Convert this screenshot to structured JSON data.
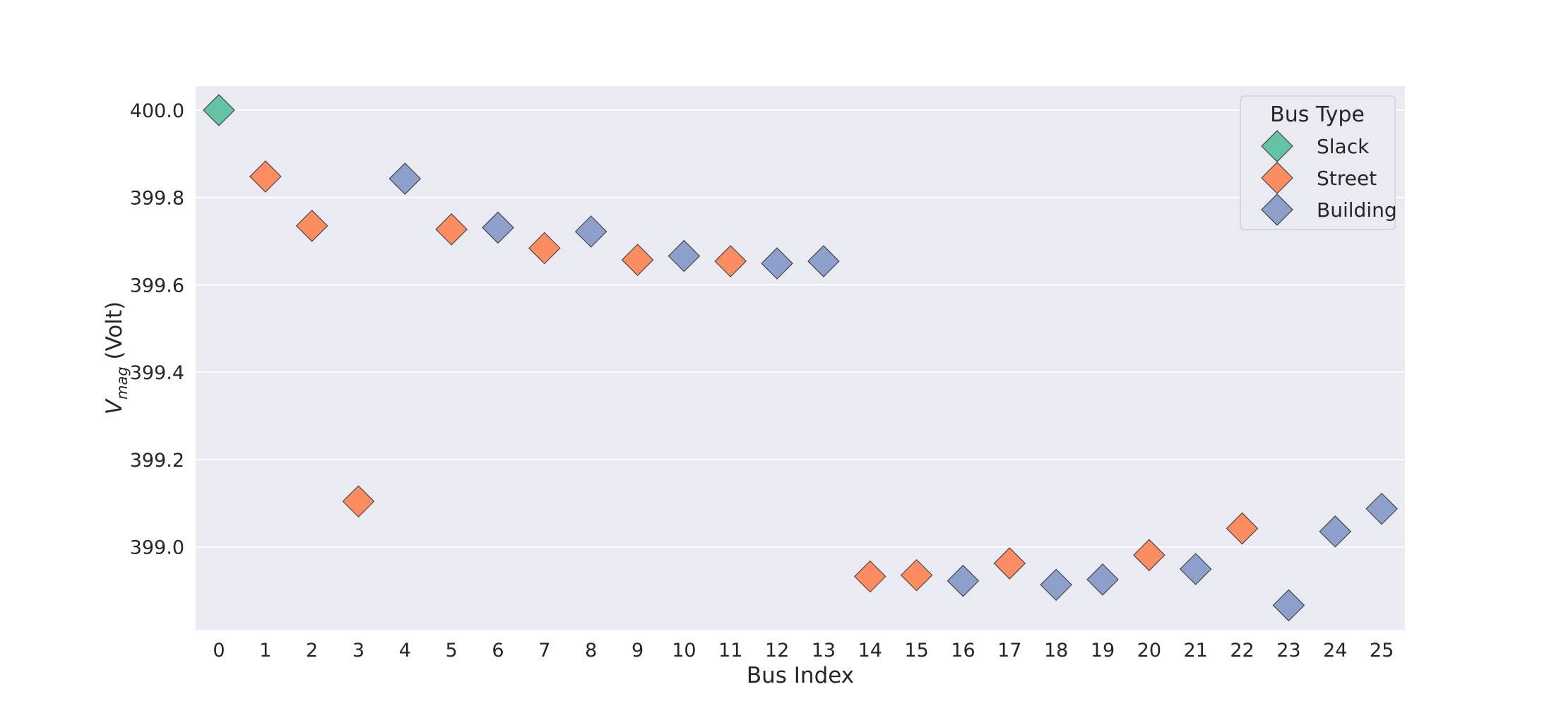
{
  "chart_data": {
    "type": "scatter",
    "title": "",
    "xlabel": "Bus Index",
    "ylabel_main": "V",
    "ylabel_sub": "mag",
    "ylabel_unit": " (Volt)",
    "xlim": [
      -0.5,
      25.5
    ],
    "ylim": [
      398.81,
      400.055
    ],
    "xticks": [
      "0",
      "1",
      "2",
      "3",
      "4",
      "5",
      "6",
      "7",
      "8",
      "9",
      "10",
      "11",
      "12",
      "13",
      "14",
      "15",
      "16",
      "17",
      "18",
      "19",
      "20",
      "21",
      "22",
      "23",
      "24",
      "25"
    ],
    "yticks": [
      "399.0",
      "399.2",
      "399.4",
      "399.6",
      "399.8",
      "400.0"
    ],
    "grid": true,
    "legend": {
      "title": "Bus Type",
      "placement": "top-right",
      "entries": [
        {
          "label": "Slack",
          "color": "#66c2a5"
        },
        {
          "label": "Street",
          "color": "#fc8d62"
        },
        {
          "label": "Building",
          "color": "#8da0cb"
        }
      ]
    },
    "points": [
      {
        "x": 0,
        "y": 400.0,
        "type": "Slack"
      },
      {
        "x": 1,
        "y": 399.848,
        "type": "Street"
      },
      {
        "x": 2,
        "y": 399.735,
        "type": "Street"
      },
      {
        "x": 3,
        "y": 399.104,
        "type": "Street"
      },
      {
        "x": 4,
        "y": 399.843,
        "type": "Building"
      },
      {
        "x": 5,
        "y": 399.727,
        "type": "Street"
      },
      {
        "x": 6,
        "y": 399.731,
        "type": "Building"
      },
      {
        "x": 7,
        "y": 399.684,
        "type": "Street"
      },
      {
        "x": 8,
        "y": 399.722,
        "type": "Building"
      },
      {
        "x": 9,
        "y": 399.657,
        "type": "Street"
      },
      {
        "x": 10,
        "y": 399.666,
        "type": "Building"
      },
      {
        "x": 11,
        "y": 399.654,
        "type": "Street"
      },
      {
        "x": 12,
        "y": 399.649,
        "type": "Building"
      },
      {
        "x": 13,
        "y": 399.654,
        "type": "Building"
      },
      {
        "x": 14,
        "y": 398.932,
        "type": "Street"
      },
      {
        "x": 15,
        "y": 398.935,
        "type": "Street"
      },
      {
        "x": 16,
        "y": 398.922,
        "type": "Building"
      },
      {
        "x": 17,
        "y": 398.962,
        "type": "Street"
      },
      {
        "x": 18,
        "y": 398.913,
        "type": "Building"
      },
      {
        "x": 19,
        "y": 398.925,
        "type": "Building"
      },
      {
        "x": 20,
        "y": 398.981,
        "type": "Street"
      },
      {
        "x": 21,
        "y": 398.949,
        "type": "Building"
      },
      {
        "x": 22,
        "y": 399.042,
        "type": "Street"
      },
      {
        "x": 23,
        "y": 398.866,
        "type": "Building"
      },
      {
        "x": 24,
        "y": 399.035,
        "type": "Building"
      },
      {
        "x": 25,
        "y": 399.087,
        "type": "Building"
      }
    ]
  }
}
